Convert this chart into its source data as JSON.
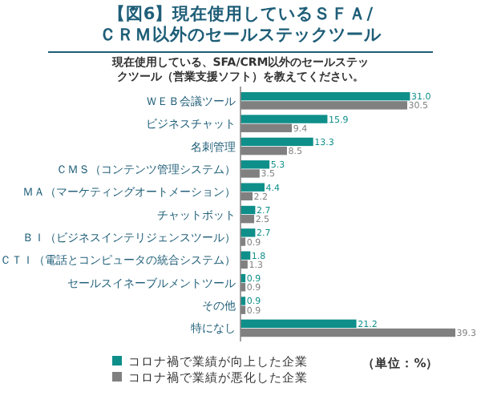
{
  "chart_data": {
    "type": "bar",
    "orientation": "horizontal",
    "title": "【図6】現在使用しているＳＦＡ/ＣＲＭ以外のセールステックツール",
    "subtitle": "現在使用している、SFA/CRM以外のセールステックツール（営業支援ソフト）を教えてください。",
    "categories": [
      "ＷＥＢ会議ツール",
      "ビジネスチャット",
      "名刺管理",
      "ＣＭＳ（コンテンツ管理システム）",
      "ＭＡ（マーケティングオートメーション）",
      "チャットボット",
      "ＢＩ（ビジネスインテリジェンスツール）",
      "ＣＴＩ（電話とコンピュータの統合システム）",
      "セールスイネーブルメントツール",
      "その他",
      "特になし"
    ],
    "series": [
      {
        "name": "コロナ禍で業績が向上した企業",
        "color": "#0e8f8a",
        "values": [
          31.0,
          15.9,
          13.3,
          5.3,
          4.4,
          2.7,
          2.7,
          1.8,
          0.9,
          0.9,
          21.2
        ],
        "value_labels": [
          "31.0",
          "15.9",
          "13.3",
          "5.3",
          "4.4",
          "2.7",
          "2.7",
          "1.8",
          "0.9",
          "0.9",
          "21.2"
        ]
      },
      {
        "name": "コロナ禍で業績が悪化した企業",
        "color": "#808080",
        "values": [
          30.5,
          9.4,
          8.5,
          3.5,
          2.2,
          2.5,
          0.9,
          1.3,
          0.9,
          0.9,
          39.3
        ],
        "value_labels": [
          "30.5",
          "9.4",
          "8.5",
          "3.5",
          "2.2",
          "2.5",
          "0.9",
          "1.3",
          "0.9",
          "0.9",
          "39.3"
        ]
      }
    ],
    "xlim": [
      0,
      39.3
    ],
    "legend": "bottom",
    "annotations": [
      "（単位：%）"
    ]
  }
}
